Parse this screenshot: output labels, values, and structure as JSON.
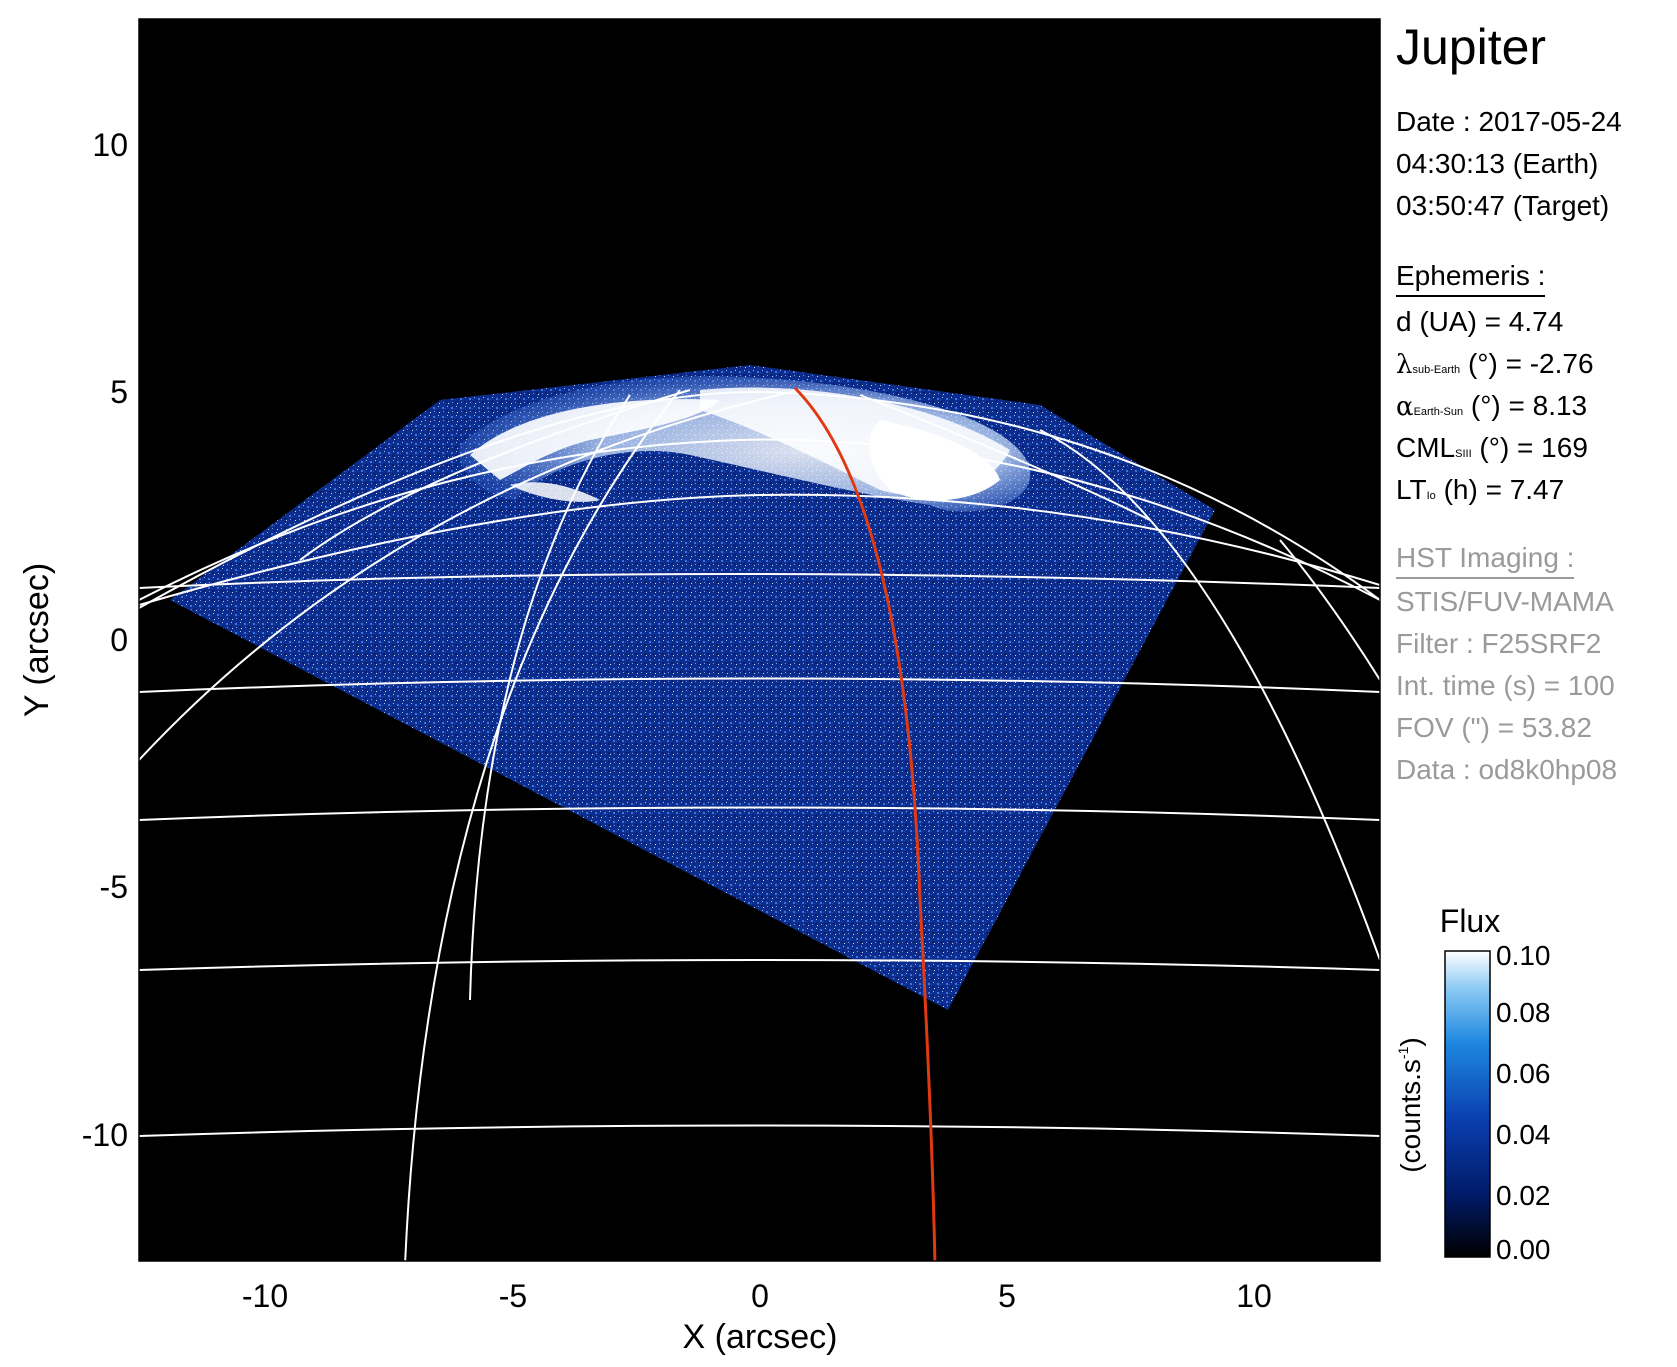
{
  "info": {
    "title": "Jupiter",
    "date_line": "Date : 2017-05-24",
    "earth_time": "04:30:13 (Earth)",
    "target_time": "03:50:47 (Target)",
    "ephemeris_header": "Ephemeris :",
    "distance": "d (UA)    = 4.74",
    "lambda_symbol": "λ",
    "lambda_sub": "sub-Earth",
    "lambda_rest": " (°) = -2.76",
    "alpha_symbol": "α",
    "alpha_sub": "Earth-Sun",
    "alpha_rest": " (°) = 8.13",
    "cml_main": "CML",
    "cml_sub": "SIII",
    "cml_rest": " (°) = 169",
    "lt_main": "LT",
    "lt_sub": "Io",
    "lt_rest": " (h) = 7.47",
    "hst_header": "HST Imaging :",
    "instrument": "STIS/FUV-MAMA",
    "filter": "Filter : F25SRF2",
    "int_time": "Int. time (s) = 100",
    "fov": "FOV (\") = 53.82",
    "data_id": "Data : od8k0hp08"
  },
  "axes": {
    "xlabel": "X (arcsec)",
    "ylabel": "Y (arcsec)",
    "x_ticks": [
      "-10",
      "-5",
      "0",
      "5",
      "10"
    ],
    "y_ticks": [
      "10",
      "5",
      "0",
      "-5",
      "-10"
    ]
  },
  "colorbar": {
    "title": "Flux",
    "unit_main": "(counts.s",
    "unit_sup": "-1",
    "unit_close": ")",
    "ticks": [
      "0.10",
      "0.08",
      "0.06",
      "0.04",
      "0.02",
      "0.00"
    ]
  },
  "colors": {
    "background": "#000000",
    "grid": "#ffffff",
    "meridian_highlight": "#e03a12",
    "emission_dark": "#0b2a8a",
    "emission_bright": "#ffffff"
  }
}
